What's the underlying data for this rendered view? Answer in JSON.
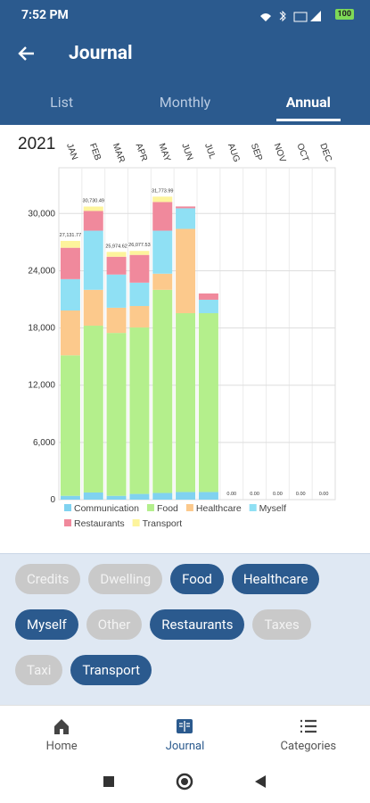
{
  "status_bar": {
    "time": "7:52 PM",
    "battery": "100"
  },
  "app_bar": {
    "title": "Journal"
  },
  "tabs": [
    {
      "label": "List",
      "selected": false
    },
    {
      "label": "Monthly",
      "selected": false
    },
    {
      "label": "Annual",
      "selected": true
    }
  ],
  "chart_data": {
    "type": "bar",
    "stacked": true,
    "title": "2021",
    "categories": [
      "JAN",
      "FEB",
      "MAR",
      "APR",
      "MAY",
      "JUN",
      "JUL",
      "AUG",
      "SEP",
      "NOV",
      "OCT",
      "DEC"
    ],
    "series": [
      {
        "name": "Communication",
        "color": "#80d2f0",
        "values": [
          400,
          750,
          400,
          600,
          700,
          800,
          800,
          0,
          0,
          0,
          0,
          0
        ]
      },
      {
        "name": "Food",
        "color": "#b4ef8c",
        "values": [
          14730,
          17490,
          17080,
          17450,
          21300,
          18750,
          18750,
          0,
          0,
          0,
          0,
          0
        ]
      },
      {
        "name": "Healthcare",
        "color": "#fcc98c",
        "values": [
          4700,
          3760,
          2640,
          2250,
          1690,
          8840,
          0,
          0,
          0,
          0,
          0,
          0
        ]
      },
      {
        "name": "Myself",
        "color": "#8fe0f4",
        "values": [
          3290,
          6200,
          3480,
          2450,
          4510,
          2160,
          1410,
          0,
          0,
          0,
          0,
          0
        ]
      },
      {
        "name": "Restaurants",
        "color": "#f0899c",
        "values": [
          3290,
          2070,
          1870,
          2910,
          3010,
          190,
          660,
          0,
          0,
          0,
          0,
          0
        ]
      },
      {
        "name": "Transport",
        "color": "#fdf49c",
        "values": [
          720,
          460,
          505,
          420,
          560,
          0,
          0,
          0,
          0,
          0,
          0,
          0
        ]
      }
    ],
    "value_labels": [
      "27,131.77",
      "30,730.49",
      "25,974.62",
      "26,077.53",
      "31,773.99",
      null,
      null,
      "0.00",
      "0.00",
      "0.00",
      "0.00",
      "0.00"
    ],
    "ylim": [
      0,
      34800
    ],
    "yticks": [
      0,
      {
        "value": 6000,
        "label": "6,000"
      },
      {
        "value": 12000,
        "label": "12,000"
      },
      {
        "value": 18000,
        "label": "18,000"
      },
      {
        "value": 24000,
        "label": "24,000"
      },
      {
        "value": 30000,
        "label": "30,000"
      }
    ],
    "grid": true,
    "legend": "bottom"
  },
  "chips": [
    {
      "label": "Credits",
      "selected": false
    },
    {
      "label": "Dwelling",
      "selected": false
    },
    {
      "label": "Food",
      "selected": true
    },
    {
      "label": "Healthcare",
      "selected": true
    },
    {
      "label": "Myself",
      "selected": true
    },
    {
      "label": "Other",
      "selected": false
    },
    {
      "label": "Restaurants",
      "selected": true
    },
    {
      "label": "Taxes",
      "selected": false
    },
    {
      "label": "Taxi",
      "selected": false
    },
    {
      "label": "Transport",
      "selected": true
    }
  ],
  "bottom_nav": [
    {
      "label": "Home",
      "selected": false
    },
    {
      "label": "Journal",
      "selected": true
    },
    {
      "label": "Categories",
      "selected": false
    }
  ]
}
